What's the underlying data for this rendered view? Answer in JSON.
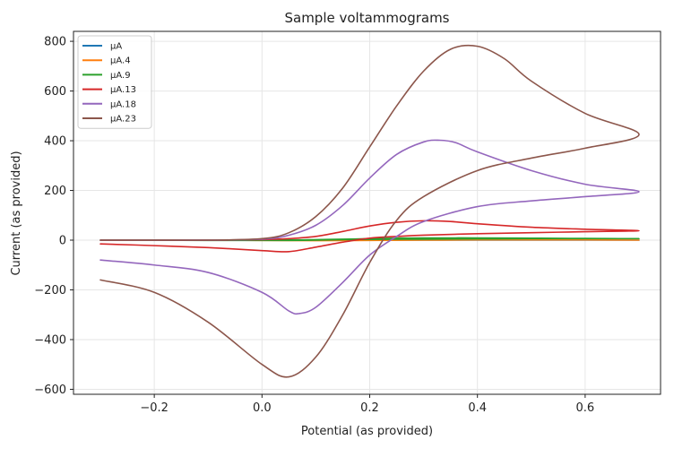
{
  "chart_data": {
    "type": "line",
    "title": "Sample voltammograms",
    "xlabel": "Potential (as provided)",
    "ylabel": "Current (as provided)",
    "xlim": [
      -0.35,
      0.74
    ],
    "ylim": [
      -620,
      840
    ],
    "xticks": [
      -0.2,
      0.0,
      0.2,
      0.4,
      0.6
    ],
    "xtick_labels": [
      "−0.2",
      "0.0",
      "0.2",
      "0.4",
      "0.6"
    ],
    "yticks": [
      -600,
      -400,
      -200,
      0,
      200,
      400,
      600,
      800
    ],
    "ytick_labels": [
      "−600",
      "−400",
      "−200",
      "0",
      "200",
      "400",
      "600",
      "800"
    ],
    "grid": true,
    "legend_position": "top-left",
    "series": [
      {
        "name": "µA",
        "color": "#1f77b4",
        "x": [
          -0.3,
          0.0,
          0.05,
          0.1,
          0.15,
          0.2,
          0.25,
          0.3,
          0.4,
          0.5,
          0.6,
          0.7,
          0.6,
          0.5,
          0.4,
          0.3,
          0.2,
          0.1,
          0.0,
          -0.1,
          -0.2,
          -0.3
        ],
        "y": [
          0,
          0,
          0,
          0,
          0,
          0,
          0,
          0,
          0,
          0,
          0,
          0,
          0,
          0,
          0,
          0,
          0,
          0,
          0,
          0,
          0,
          0
        ]
      },
      {
        "name": "µA.4",
        "color": "#ff7f0e",
        "x": [
          -0.3,
          0.0,
          0.1,
          0.2,
          0.3,
          0.4,
          0.5,
          0.6,
          0.7,
          0.6,
          0.5,
          0.4,
          0.3,
          0.2,
          0.1,
          0.0,
          -0.1,
          -0.2,
          -0.3
        ],
        "y": [
          0,
          0,
          1,
          2,
          3,
          2,
          2,
          1,
          0,
          1,
          1,
          1,
          0,
          -1,
          -2,
          -1,
          0,
          0,
          0
        ]
      },
      {
        "name": "µA.9",
        "color": "#2ca02c",
        "x": [
          -0.3,
          -0.1,
          0.0,
          0.05,
          0.1,
          0.15,
          0.2,
          0.25,
          0.3,
          0.4,
          0.5,
          0.6,
          0.7,
          0.6,
          0.5,
          0.4,
          0.3,
          0.2,
          0.15,
          0.1,
          0.05,
          0.0,
          -0.1,
          -0.2,
          -0.3
        ],
        "y": [
          0,
          0,
          0,
          1,
          2,
          4,
          6,
          8,
          9,
          9,
          8,
          7,
          6,
          6,
          6,
          5,
          4,
          3,
          2,
          0,
          -1,
          -1,
          -1,
          0,
          0
        ]
      },
      {
        "name": "µA.13",
        "color": "#d62728",
        "x": [
          -0.3,
          -0.2,
          -0.1,
          0.0,
          0.05,
          0.1,
          0.15,
          0.2,
          0.25,
          0.3,
          0.35,
          0.4,
          0.5,
          0.6,
          0.7,
          0.6,
          0.5,
          0.4,
          0.3,
          0.25,
          0.2,
          0.15,
          0.1,
          0.05,
          0.0,
          -0.1,
          -0.2,
          -0.3
        ],
        "y": [
          0,
          0,
          0,
          2,
          6,
          15,
          35,
          57,
          72,
          78,
          75,
          66,
          52,
          44,
          38,
          34,
          30,
          26,
          20,
          15,
          8,
          -8,
          -28,
          -46,
          -42,
          -30,
          -22,
          -15
        ]
      },
      {
        "name": "µA.18",
        "color": "#9467bd",
        "x": [
          -0.3,
          -0.2,
          -0.1,
          0.0,
          0.05,
          0.1,
          0.15,
          0.2,
          0.25,
          0.3,
          0.33,
          0.36,
          0.4,
          0.5,
          0.6,
          0.7,
          0.6,
          0.5,
          0.4,
          0.3,
          0.25,
          0.2,
          0.15,
          0.1,
          0.07,
          0.05,
          0.0,
          -0.1,
          -0.2,
          -0.3
        ],
        "y": [
          0,
          0,
          0,
          4,
          20,
          60,
          140,
          250,
          345,
          395,
          402,
          392,
          355,
          280,
          225,
          195,
          175,
          158,
          135,
          75,
          15,
          -60,
          -170,
          -270,
          -295,
          -285,
          -210,
          -130,
          -100,
          -80
        ]
      },
      {
        "name": "µA.23",
        "color": "#8c564b",
        "x": [
          -0.3,
          -0.2,
          -0.1,
          0.0,
          0.05,
          0.1,
          0.15,
          0.2,
          0.25,
          0.3,
          0.35,
          0.4,
          0.45,
          0.5,
          0.6,
          0.7,
          0.6,
          0.5,
          0.4,
          0.3,
          0.25,
          0.2,
          0.15,
          0.1,
          0.05,
          0.0,
          -0.1,
          -0.2,
          -0.3
        ],
        "y": [
          0,
          0,
          0,
          6,
          30,
          95,
          210,
          375,
          540,
          680,
          768,
          780,
          730,
          640,
          510,
          425,
          370,
          330,
          280,
          175,
          80,
          -90,
          -300,
          -470,
          -550,
          -500,
          -330,
          -210,
          -160
        ]
      }
    ]
  }
}
